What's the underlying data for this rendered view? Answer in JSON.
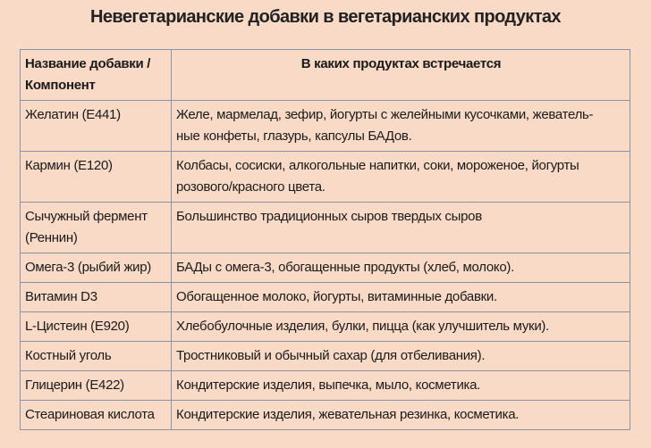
{
  "title": "Невегетарианские добавки в вегетарианских продуктах",
  "table": {
    "headers": [
      "Название добавки /\nКомпонент",
      "В каких продуктах встречается"
    ],
    "rows": [
      [
        "Желатин (E441)",
        "Желе, мармелад, зефир, йогурты с желейными кусочками, жеватель-\nные конфеты, глазурь, капсулы БАДов."
      ],
      [
        "Кармин (E120)",
        "Колбасы, сосиски, алкогольные напитки, соки, мороженое, йогурты\nрозового/красного цвета."
      ],
      [
        "Сычужный фермент\n(Реннин)",
        "Большинство традиционных сыров твердых сыров"
      ],
      [
        "Омега-3 (рыбий жир)",
        "БАДы с омега-3, обогащенные продукты (хлеб, молоко)."
      ],
      [
        "Витамин D3",
        "Обогащенное молоко, йогурты, витаминные добавки."
      ],
      [
        "L-Цистеин (E920)",
        "Хлебобулочные изделия, булки, пицца (как улучшитель муки)."
      ],
      [
        "Костный уголь",
        "Тростниковый и обычный сахар (для отбеливания)."
      ],
      [
        "Глицерин (E422)",
        "Кондитерские изделия, выпечка, мыло, косметика."
      ],
      [
        "Стеариновая кислота",
        "Кондитерские изделия, жевательная резинка, косметика."
      ]
    ]
  }
}
